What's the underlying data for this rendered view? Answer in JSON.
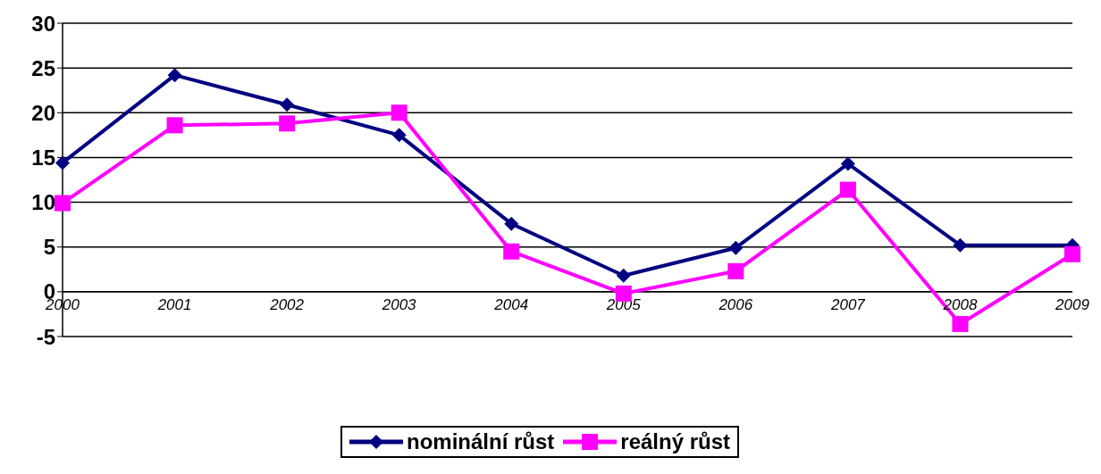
{
  "chart_data": {
    "type": "line",
    "categories": [
      "2000",
      "2001",
      "2002",
      "2003",
      "2004",
      "2005",
      "2006",
      "2007",
      "2008",
      "2009"
    ],
    "series": [
      {
        "name": "nominální růst",
        "color": "#000080",
        "marker": "diamond",
        "values": [
          14.4,
          24.2,
          20.9,
          17.5,
          7.6,
          1.8,
          4.9,
          14.3,
          5.2,
          5.2
        ]
      },
      {
        "name": "reálný růst",
        "color": "#ff00ff",
        "marker": "square",
        "values": [
          9.9,
          18.6,
          18.8,
          20.0,
          4.5,
          -0.2,
          2.3,
          11.4,
          -3.6,
          4.2
        ]
      }
    ],
    "ylim": [
      -5,
      30
    ],
    "yticks": [
      -5,
      0,
      5,
      10,
      15,
      20,
      25,
      30
    ],
    "grid": "y",
    "legend": "bottom"
  }
}
